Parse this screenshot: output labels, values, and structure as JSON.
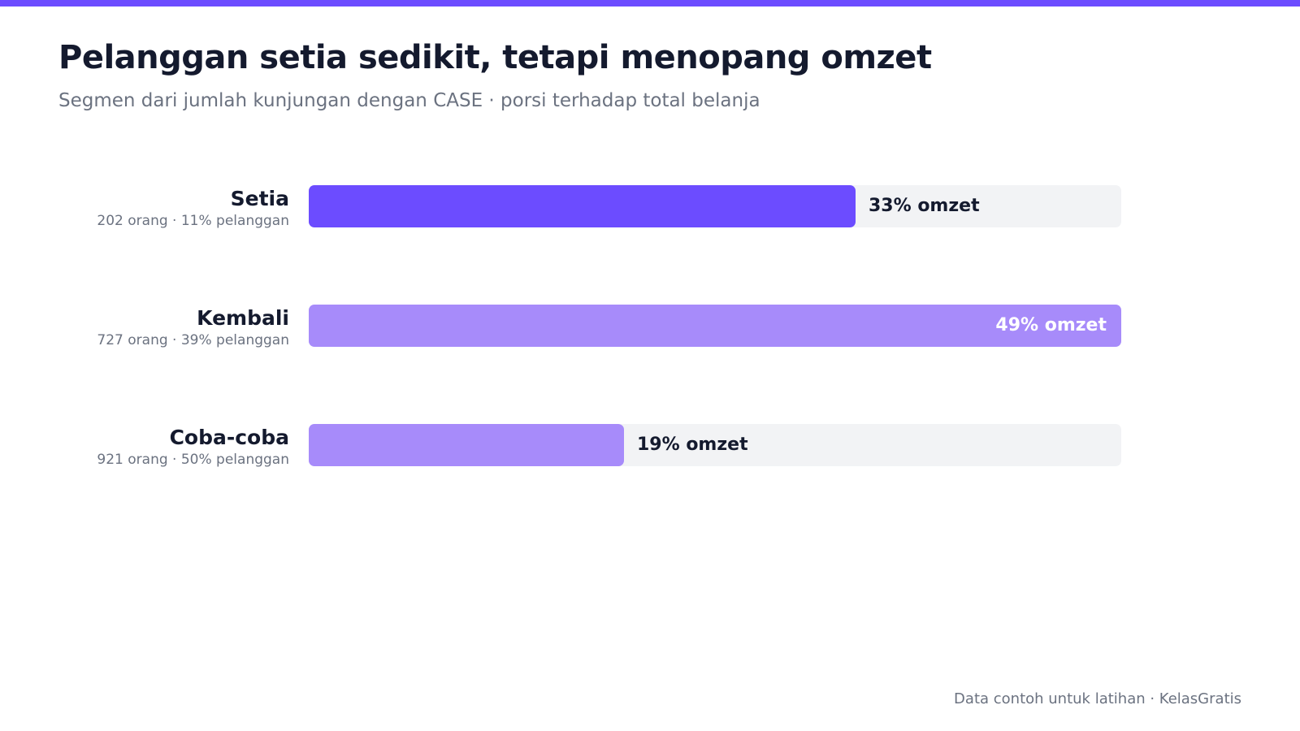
{
  "header": {
    "title": "Pelanggan setia sedikit, tetapi menopang omzet",
    "subtitle": "Segmen dari jumlah kunjungan dengan CASE · porsi terhadap total belanja"
  },
  "footer": {
    "text": "Data contoh untuk latihan · KelasGratis"
  },
  "colors": {
    "accent": "#6c4cff",
    "highlight_bar": "#6c4cff",
    "muted_bar": "#a78bfa",
    "track": "#f2f3f5",
    "text_dark": "#141a2e",
    "text_light": "#ffffff",
    "text_muted": "#6b7280"
  },
  "chart_data": {
    "type": "bar",
    "orientation": "horizontal",
    "title": "Pelanggan setia sedikit, tetapi menopang omzet",
    "subtitle": "Segmen dari jumlah kunjungan dengan CASE · porsi terhadap total belanja",
    "xlim": [
      0,
      49
    ],
    "grid": false,
    "categories": [
      "Setia",
      "Kembali",
      "Coba-coba"
    ],
    "values": [
      33,
      49,
      19
    ],
    "unit": "% omzet",
    "data_labels": [
      "33% omzet",
      "49% omzet",
      "19% omzet"
    ],
    "category_details": [
      "202 orang · 11% pelanggan",
      "727 orang · 39% pelanggan",
      "921 orang · 50% pelanggan"
    ],
    "highlight": "Setia"
  }
}
